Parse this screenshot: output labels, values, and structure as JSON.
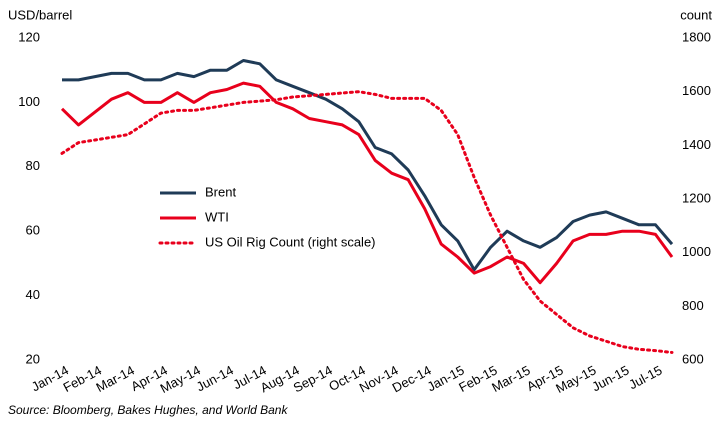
{
  "chart_data": {
    "type": "line",
    "y_label": "USD/barrel",
    "y2_label": "count",
    "source": "Source: Bloomberg, Bakes Hughes, and World Bank",
    "categories": [
      "Jan-14",
      null,
      "Feb-14",
      null,
      "Mar-14",
      null,
      "Apr-14",
      null,
      "May-14",
      null,
      "Jun-14",
      null,
      "Jul-14",
      null,
      "Aug-14",
      null,
      "Sep-14",
      null,
      "Oct-14",
      null,
      "Nov-14",
      null,
      "Dec-14",
      null,
      "Jan-15",
      null,
      "Feb-15",
      null,
      "Mar-15",
      null,
      "Apr-15",
      null,
      "May-15",
      null,
      "Jun-15",
      null,
      "Jul-15",
      null
    ],
    "series": [
      {
        "name": "Brent",
        "color": "#1f3b57",
        "style": "solid",
        "values": [
          107,
          107,
          108,
          109,
          109,
          107,
          107,
          109,
          108,
          110,
          110,
          113,
          112,
          107,
          105,
          103,
          101,
          98,
          94,
          86,
          84,
          79,
          71,
          62,
          57,
          48,
          55,
          60,
          57,
          55,
          58,
          63,
          65,
          66,
          64,
          62,
          62,
          56
        ]
      },
      {
        "name": "WTI",
        "color": "#e8001c",
        "style": "solid",
        "values": [
          98,
          93,
          97,
          101,
          103,
          100,
          100,
          103,
          100,
          103,
          104,
          106,
          105,
          100,
          98,
          95,
          94,
          93,
          90,
          82,
          78,
          76,
          67,
          56,
          52,
          47,
          49,
          52,
          50,
          44,
          50,
          57,
          59,
          59,
          60,
          60,
          59,
          52
        ]
      },
      {
        "name": "US Oil Rig Count (right scale)",
        "color": "#e8001c",
        "style": "dotted",
        "axis": "y2",
        "values": [
          1370,
          1410,
          1420,
          1430,
          1440,
          1480,
          1520,
          1530,
          1530,
          1540,
          1550,
          1560,
          1565,
          1570,
          1580,
          1585,
          1590,
          1595,
          1600,
          1590,
          1575,
          1575,
          1575,
          1530,
          1440,
          1280,
          1140,
          1020,
          900,
          820,
          770,
          720,
          690,
          670,
          650,
          640,
          635,
          628
        ]
      }
    ],
    "ylim": [
      20,
      120
    ],
    "yticks": [
      20,
      40,
      60,
      80,
      100,
      120
    ],
    "y2lim": [
      600,
      1800
    ],
    "y2ticks": [
      600,
      800,
      1000,
      1200,
      1400,
      1600,
      1800
    ]
  }
}
